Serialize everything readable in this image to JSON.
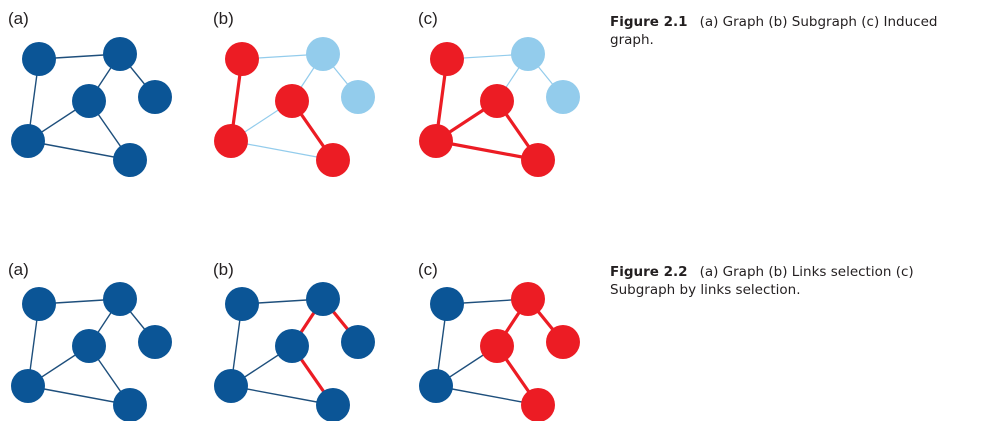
{
  "colors": {
    "node_default": "#0b5596",
    "node_selected": "#ec1c24",
    "node_faded": "#93ccec",
    "edge_default": "#1e4f7c",
    "edge_selected": "#ec1c24",
    "edge_faded": "#93ccec"
  },
  "graph": {
    "nodes": [
      "A",
      "B",
      "C",
      "D",
      "E",
      "F"
    ],
    "edges": [
      [
        "A",
        "B"
      ],
      [
        "A",
        "E"
      ],
      [
        "B",
        "D"
      ],
      [
        "B",
        "C"
      ],
      [
        "D",
        "E"
      ],
      [
        "D",
        "F"
      ],
      [
        "E",
        "F"
      ]
    ]
  },
  "figures": [
    {
      "caption_label": "Figure 2.1",
      "caption_text": "(a) Graph (b) Subgraph (c) Induced graph.",
      "panels": [
        {
          "label": "(a)",
          "node_styles": {
            "A": "default",
            "B": "default",
            "C": "default",
            "D": "default",
            "E": "default",
            "F": "default"
          },
          "edge_styles": [
            "default",
            "default",
            "default",
            "default",
            "default",
            "default",
            "default"
          ]
        },
        {
          "label": "(b)",
          "node_styles": {
            "A": "selected",
            "B": "faded",
            "C": "faded",
            "D": "selected",
            "E": "selected",
            "F": "selected"
          },
          "edge_styles": [
            "faded",
            "selected",
            "faded",
            "faded",
            "faded",
            "selected",
            "faded"
          ]
        },
        {
          "label": "(c)",
          "node_styles": {
            "A": "selected",
            "B": "faded",
            "C": "faded",
            "D": "selected",
            "E": "selected",
            "F": "selected"
          },
          "edge_styles": [
            "faded",
            "selected",
            "faded",
            "faded",
            "selected",
            "selected",
            "selected"
          ]
        }
      ]
    },
    {
      "caption_label": "Figure 2.2",
      "caption_text": "(a) Graph (b) Links selection (c) Subgraph by links selection.",
      "panels": [
        {
          "label": "(a)",
          "node_styles": {
            "A": "default",
            "B": "default",
            "C": "default",
            "D": "default",
            "E": "default",
            "F": "default"
          },
          "edge_styles": [
            "default",
            "default",
            "default",
            "default",
            "default",
            "default",
            "default"
          ]
        },
        {
          "label": "(b)",
          "node_styles": {
            "A": "default",
            "B": "default",
            "C": "default",
            "D": "default",
            "E": "default",
            "F": "default"
          },
          "edge_styles": [
            "default",
            "default",
            "selected",
            "selected",
            "default",
            "selected",
            "default"
          ]
        },
        {
          "label": "(c)",
          "node_styles": {
            "A": "default",
            "B": "selected",
            "C": "selected",
            "D": "selected",
            "E": "default",
            "F": "selected"
          },
          "edge_styles": [
            "default",
            "default",
            "selected",
            "selected",
            "default",
            "selected",
            "default"
          ]
        }
      ]
    }
  ]
}
